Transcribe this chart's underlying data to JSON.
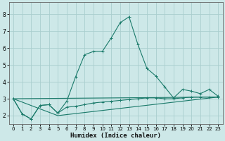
{
  "xlabel": "Humidex (Indice chaleur)",
  "xlim": [
    -0.5,
    23.5
  ],
  "ylim": [
    1.5,
    8.7
  ],
  "yticks": [
    2,
    3,
    4,
    5,
    6,
    7,
    8
  ],
  "xticks": [
    0,
    1,
    2,
    3,
    4,
    5,
    6,
    7,
    8,
    9,
    10,
    11,
    12,
    13,
    14,
    15,
    16,
    17,
    18,
    19,
    20,
    21,
    22,
    23
  ],
  "bg_color": "#cde8e8",
  "grid_color": "#aacece",
  "line_color": "#1a7a6a",
  "line1_x": [
    0,
    1,
    2,
    3,
    4,
    5,
    6,
    7,
    8,
    9,
    10,
    11,
    12,
    13,
    14,
    15,
    16,
    17,
    18,
    19,
    20,
    21,
    22,
    23
  ],
  "line1_y": [
    3.0,
    2.1,
    1.8,
    2.6,
    2.65,
    2.15,
    2.85,
    4.3,
    5.6,
    5.8,
    5.8,
    6.6,
    7.5,
    7.85,
    6.2,
    4.8,
    4.35,
    3.7,
    3.05,
    3.55,
    3.45,
    3.3,
    3.55,
    3.15
  ],
  "line2_x": [
    0,
    1,
    2,
    3,
    4,
    5,
    6,
    7,
    8,
    9,
    10,
    11,
    12,
    13,
    14,
    15,
    16,
    17,
    18,
    19,
    20,
    21,
    22,
    23
  ],
  "line2_y": [
    3.0,
    2.1,
    1.8,
    2.6,
    2.65,
    2.15,
    2.5,
    2.55,
    2.65,
    2.75,
    2.8,
    2.85,
    2.9,
    2.95,
    3.0,
    3.05,
    3.05,
    3.0,
    3.0,
    3.05,
    3.1,
    3.1,
    3.1,
    3.1
  ],
  "line3_x": [
    0,
    23
  ],
  "line3_y": [
    3.0,
    3.1
  ],
  "line4_x": [
    0,
    5,
    23
  ],
  "line4_y": [
    3.0,
    2.0,
    3.1
  ]
}
